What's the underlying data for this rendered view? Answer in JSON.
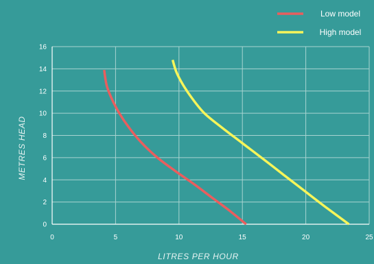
{
  "chart_data": {
    "type": "line",
    "xlabel": "LITRES PER HOUR",
    "ylabel": "METRES HEAD",
    "xlim": [
      0,
      25
    ],
    "ylim": [
      0,
      16
    ],
    "x_ticks": [
      0,
      5,
      10,
      15,
      20,
      25
    ],
    "y_ticks": [
      0,
      2,
      4,
      6,
      8,
      10,
      12,
      14,
      16
    ],
    "grid": true,
    "legend_position": "top-right",
    "series": [
      {
        "name": "Low model",
        "color": "#e95e5e",
        "points": [
          [
            4.1,
            13.9
          ],
          [
            4.3,
            12.5
          ],
          [
            4.7,
            11.3
          ],
          [
            5.3,
            10.0
          ],
          [
            6.0,
            8.8
          ],
          [
            7.0,
            7.4
          ],
          [
            8.3,
            6.0
          ],
          [
            9.7,
            4.8
          ],
          [
            11.2,
            3.6
          ],
          [
            12.6,
            2.4
          ],
          [
            13.9,
            1.3
          ],
          [
            15.3,
            0.0
          ]
        ]
      },
      {
        "name": "High model",
        "color": "#f6f55a",
        "points": [
          [
            9.5,
            14.8
          ],
          [
            9.8,
            13.7
          ],
          [
            10.3,
            12.6
          ],
          [
            11.0,
            11.4
          ],
          [
            12.0,
            10.0
          ],
          [
            13.4,
            8.7
          ],
          [
            15.0,
            7.3
          ],
          [
            16.5,
            6.0
          ],
          [
            18.2,
            4.5
          ],
          [
            19.9,
            3.0
          ],
          [
            21.5,
            1.6
          ],
          [
            23.4,
            0.0
          ]
        ]
      }
    ]
  }
}
